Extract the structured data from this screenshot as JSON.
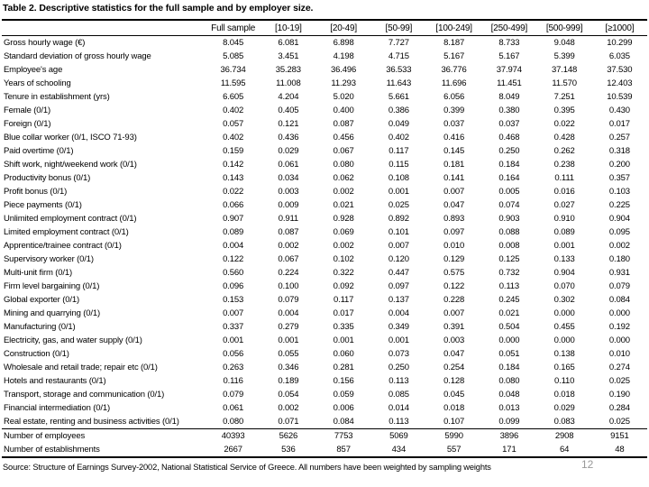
{
  "title": "Table 2. Descriptive statistics for the full sample and by employer size.",
  "table": {
    "columns": [
      "Full sample",
      "[10-19]",
      "[20-49]",
      "[50-99]",
      "[100-249]",
      "[250-499]",
      "[500-999]",
      "[≥1000]"
    ],
    "rows": [
      {
        "label": "Gross hourly wage (€)",
        "values": [
          "8.045",
          "6.081",
          "6.898",
          "7.727",
          "8.187",
          "8.733",
          "9.048",
          "10.299"
        ]
      },
      {
        "label": "Standard deviation of gross hourly wage",
        "values": [
          "5.085",
          "3.451",
          "4.198",
          "4.715",
          "5.167",
          "5.167",
          "5.399",
          "6.035"
        ]
      },
      {
        "label": "Employee's age",
        "values": [
          "36.734",
          "35.283",
          "36.496",
          "36.533",
          "36.776",
          "37.974",
          "37.148",
          "37.530"
        ]
      },
      {
        "label": "Years of schooling",
        "values": [
          "11.595",
          "11.008",
          "11.293",
          "11.643",
          "11.696",
          "11.451",
          "11.570",
          "12.403"
        ]
      },
      {
        "label": "Tenure in establishment (yrs)",
        "values": [
          "6.605",
          "4.204",
          "5.020",
          "5.661",
          "6.056",
          "8.049",
          "7.251",
          "10.539"
        ]
      },
      {
        "label": "Female (0/1)",
        "values": [
          "0.402",
          "0.405",
          "0.400",
          "0.386",
          "0.399",
          "0.380",
          "0.395",
          "0.430"
        ]
      },
      {
        "label": "Foreign (0/1)",
        "values": [
          "0.057",
          "0.121",
          "0.087",
          "0.049",
          "0.037",
          "0.037",
          "0.022",
          "0.017"
        ]
      },
      {
        "label": "Blue collar worker (0/1, ISCO 71-93)",
        "values": [
          "0.402",
          "0.436",
          "0.456",
          "0.402",
          "0.416",
          "0.468",
          "0.428",
          "0.257"
        ]
      },
      {
        "label": "Paid overtime (0/1)",
        "values": [
          "0.159",
          "0.029",
          "0.067",
          "0.117",
          "0.145",
          "0.250",
          "0.262",
          "0.318"
        ]
      },
      {
        "label": "Shift work, night/weekend work (0/1)",
        "values": [
          "0.142",
          "0.061",
          "0.080",
          "0.115",
          "0.181",
          "0.184",
          "0.238",
          "0.200"
        ]
      },
      {
        "label": "Productivity bonus (0/1)",
        "values": [
          "0.143",
          "0.034",
          "0.062",
          "0.108",
          "0.141",
          "0.164",
          "0.111",
          "0.357"
        ]
      },
      {
        "label": "Profit bonus (0/1)",
        "values": [
          "0.022",
          "0.003",
          "0.002",
          "0.001",
          "0.007",
          "0.005",
          "0.016",
          "0.103"
        ]
      },
      {
        "label": "Piece payments (0/1)",
        "values": [
          "0.066",
          "0.009",
          "0.021",
          "0.025",
          "0.047",
          "0.074",
          "0.027",
          "0.225"
        ]
      },
      {
        "label": "Unlimited employment contract (0/1)",
        "values": [
          "0.907",
          "0.911",
          "0.928",
          "0.892",
          "0.893",
          "0.903",
          "0.910",
          "0.904"
        ]
      },
      {
        "label": "Limited employment contract (0/1)",
        "values": [
          "0.089",
          "0.087",
          "0.069",
          "0.101",
          "0.097",
          "0.088",
          "0.089",
          "0.095"
        ]
      },
      {
        "label": "Apprentice/trainee contract (0/1)",
        "values": [
          "0.004",
          "0.002",
          "0.002",
          "0.007",
          "0.010",
          "0.008",
          "0.001",
          "0.002"
        ]
      },
      {
        "label": "Supervisory worker (0/1)",
        "values": [
          "0.122",
          "0.067",
          "0.102",
          "0.120",
          "0.129",
          "0.125",
          "0.133",
          "0.180"
        ]
      },
      {
        "label": "Multi-unit firm (0/1)",
        "values": [
          "0.560",
          "0.224",
          "0.322",
          "0.447",
          "0.575",
          "0.732",
          "0.904",
          "0.931"
        ]
      },
      {
        "label": "Firm level bargaining (0/1)",
        "values": [
          "0.096",
          "0.100",
          "0.092",
          "0.097",
          "0.122",
          "0.113",
          "0.070",
          "0.079"
        ]
      },
      {
        "label": "Global exporter (0/1)",
        "values": [
          "0.153",
          "0.079",
          "0.117",
          "0.137",
          "0.228",
          "0.245",
          "0.302",
          "0.084"
        ]
      },
      {
        "label": "Mining and quarrying (0/1)",
        "values": [
          "0.007",
          "0.004",
          "0.017",
          "0.004",
          "0.007",
          "0.021",
          "0.000",
          "0.000"
        ]
      },
      {
        "label": "Manufacturing (0/1)",
        "values": [
          "0.337",
          "0.279",
          "0.335",
          "0.349",
          "0.391",
          "0.504",
          "0.455",
          "0.192"
        ]
      },
      {
        "label": "Electricity, gas, and water supply (0/1)",
        "values": [
          "0.001",
          "0.001",
          "0.001",
          "0.001",
          "0.003",
          "0.000",
          "0.000",
          "0.000"
        ]
      },
      {
        "label": "Construction (0/1)",
        "values": [
          "0.056",
          "0.055",
          "0.060",
          "0.073",
          "0.047",
          "0.051",
          "0.138",
          "0.010"
        ]
      },
      {
        "label": "Wholesale and retail trade; repair etc (0/1)",
        "values": [
          "0.263",
          "0.346",
          "0.281",
          "0.250",
          "0.254",
          "0.184",
          "0.165",
          "0.274"
        ]
      },
      {
        "label": "Hotels and restaurants (0/1)",
        "values": [
          "0.116",
          "0.189",
          "0.156",
          "0.113",
          "0.128",
          "0.080",
          "0.110",
          "0.025"
        ]
      },
      {
        "label": "Transport, storage and communication (0/1)",
        "values": [
          "0.079",
          "0.054",
          "0.059",
          "0.085",
          "0.045",
          "0.048",
          "0.018",
          "0.190"
        ]
      },
      {
        "label": "Financial intermediation (0/1)",
        "values": [
          "0.061",
          "0.002",
          "0.006",
          "0.014",
          "0.018",
          "0.013",
          "0.029",
          "0.284"
        ]
      },
      {
        "label": "Real estate, renting and business activities (0/1)",
        "values": [
          "0.080",
          "0.071",
          "0.084",
          "0.113",
          "0.107",
          "0.099",
          "0.083",
          "0.025"
        ]
      }
    ],
    "summary_rows": [
      {
        "label": "Number of employees",
        "values": [
          "40393",
          "5626",
          "7753",
          "5069",
          "5990",
          "3896",
          "2908",
          "9151"
        ]
      },
      {
        "label": "Number of establishments",
        "values": [
          "2667",
          "536",
          "857",
          "434",
          "557",
          "171",
          "64",
          "48"
        ]
      }
    ]
  },
  "footer": {
    "source": "Source: Structure of Earnings Survey-2002, National Statistical Service of Greece. All numbers have been weighted by sampling weights",
    "page_number": "12"
  },
  "colors": {
    "text": "#000000",
    "rule": "#000000",
    "page_number": "#999999",
    "background": "#ffffff"
  }
}
